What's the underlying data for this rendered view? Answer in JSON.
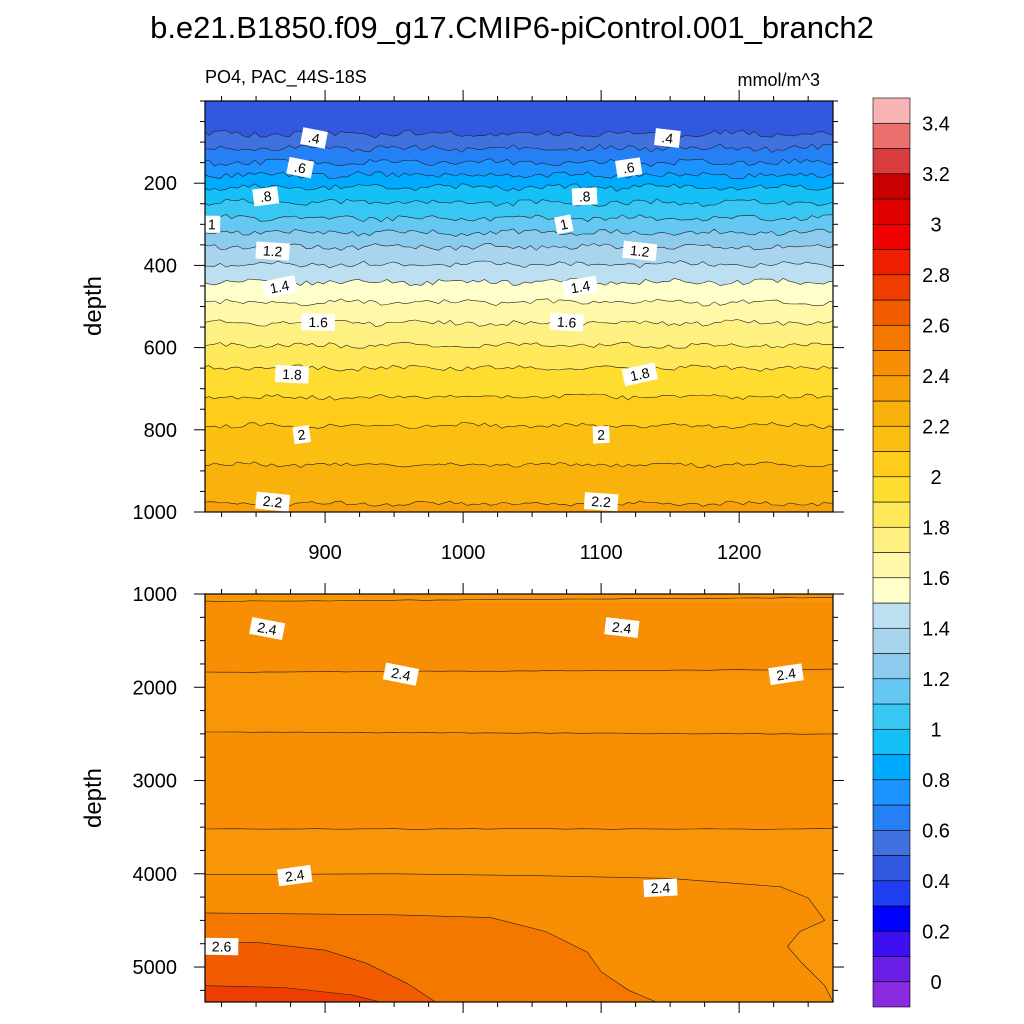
{
  "chart_data": {
    "type": "contour",
    "title": "b.e21.B1850.f09_g17.CMIP6-piControl.001_branch2",
    "variable_label": "PO4, PAC_44S-18S",
    "units_label": "mmol/m^3",
    "ylabel": "depth",
    "x_ticks": [
      900,
      1000,
      1100,
      1200
    ],
    "xlim": [
      813,
      1268
    ],
    "panels": [
      {
        "name": "upper",
        "ylim": [
          1000,
          0
        ],
        "y_ticks": [
          200,
          400,
          600,
          800,
          1000
        ],
        "profile": [
          {
            "depth": 10,
            "value": 0.3
          },
          {
            "depth": 80,
            "value": 0.4
          },
          {
            "depth": 150,
            "value": 0.6
          },
          {
            "depth": 210,
            "value": 0.8
          },
          {
            "depth": 285,
            "value": 1.0
          },
          {
            "depth": 355,
            "value": 1.2
          },
          {
            "depth": 440,
            "value": 1.4
          },
          {
            "depth": 540,
            "value": 1.6
          },
          {
            "depth": 595,
            "value": 1.7
          },
          {
            "depth": 650,
            "value": 1.8
          },
          {
            "depth": 790,
            "value": 2.0
          },
          {
            "depth": 980,
            "value": 2.2
          },
          {
            "depth": 1000,
            "value": 2.22
          }
        ],
        "contour_labels": [
          {
            "text": ".4",
            "x": 892,
            "depth": 90
          },
          {
            "text": ".4",
            "x": 1148,
            "depth": 90
          },
          {
            "text": ".6",
            "x": 882,
            "depth": 162
          },
          {
            "text": ".6",
            "x": 1120,
            "depth": 162
          },
          {
            "text": ".8",
            "x": 857,
            "depth": 232
          },
          {
            "text": ".8",
            "x": 1088,
            "depth": 232
          },
          {
            "text": "1",
            "x": 818,
            "depth": 300
          },
          {
            "text": "1",
            "x": 1073,
            "depth": 300
          },
          {
            "text": "1.2",
            "x": 862,
            "depth": 365
          },
          {
            "text": "1.2",
            "x": 1128,
            "depth": 365
          },
          {
            "text": "1.4",
            "x": 867,
            "depth": 452
          },
          {
            "text": "1.4",
            "x": 1085,
            "depth": 452
          },
          {
            "text": "1.6",
            "x": 895,
            "depth": 538
          },
          {
            "text": "1.6",
            "x": 1075,
            "depth": 538
          },
          {
            "text": "1.8",
            "x": 876,
            "depth": 665
          },
          {
            "text": "1.8",
            "x": 1128,
            "depth": 665
          },
          {
            "text": "2",
            "x": 883,
            "depth": 812
          },
          {
            "text": "2",
            "x": 1100,
            "depth": 812
          },
          {
            "text": "2.2",
            "x": 862,
            "depth": 975
          },
          {
            "text": "2.2",
            "x": 1100,
            "depth": 975
          }
        ]
      },
      {
        "name": "lower",
        "ylim": [
          5375,
          1000
        ],
        "y_ticks": [
          1000,
          2000,
          3000,
          4000,
          5000
        ],
        "contour_labels": [
          {
            "text": "2.4",
            "x": 858,
            "depth": 1370
          },
          {
            "text": "2.4",
            "x": 1115,
            "depth": 1360
          },
          {
            "text": "2.4",
            "x": 955,
            "depth": 1860
          },
          {
            "text": "2.4",
            "x": 1234,
            "depth": 1860
          },
          {
            "text": "2.4",
            "x": 878,
            "depth": 4020
          },
          {
            "text": "2.4",
            "x": 1143,
            "depth": 4150
          },
          {
            "text": "2.6",
            "x": 825,
            "depth": 4780
          }
        ]
      }
    ],
    "colorbar": {
      "labels": [
        "0",
        "0.2",
        "0.4",
        "0.6",
        "0.8",
        "1",
        "1.2",
        "1.4",
        "1.6",
        "1.8",
        "2",
        "2.2",
        "2.4",
        "2.6",
        "2.8",
        "3",
        "3.2",
        "3.4"
      ],
      "colors": [
        "#8a2be2",
        "#6a1ee6",
        "#3d10f0",
        "#0000ff",
        "#1f3ef2",
        "#3358e0",
        "#4170df",
        "#2680f5",
        "#1c94ff",
        "#00aaff",
        "#14c0f5",
        "#38c6f2",
        "#64c8f2",
        "#8ccbee",
        "#a8d4ee",
        "#bcdff1",
        "#ffffcc",
        "#fff8a8",
        "#fff082",
        "#ffe85a",
        "#ffdd30",
        "#ffcc1a",
        "#fbbf12",
        "#f9b10c",
        "#f7a008",
        "#f78e04",
        "#f47800",
        "#f25c00",
        "#ef3c00",
        "#f01e00",
        "#f00000",
        "#e00000",
        "#c80000",
        "#d83c3c",
        "#ea7070",
        "#f8b4b4"
      ]
    }
  }
}
